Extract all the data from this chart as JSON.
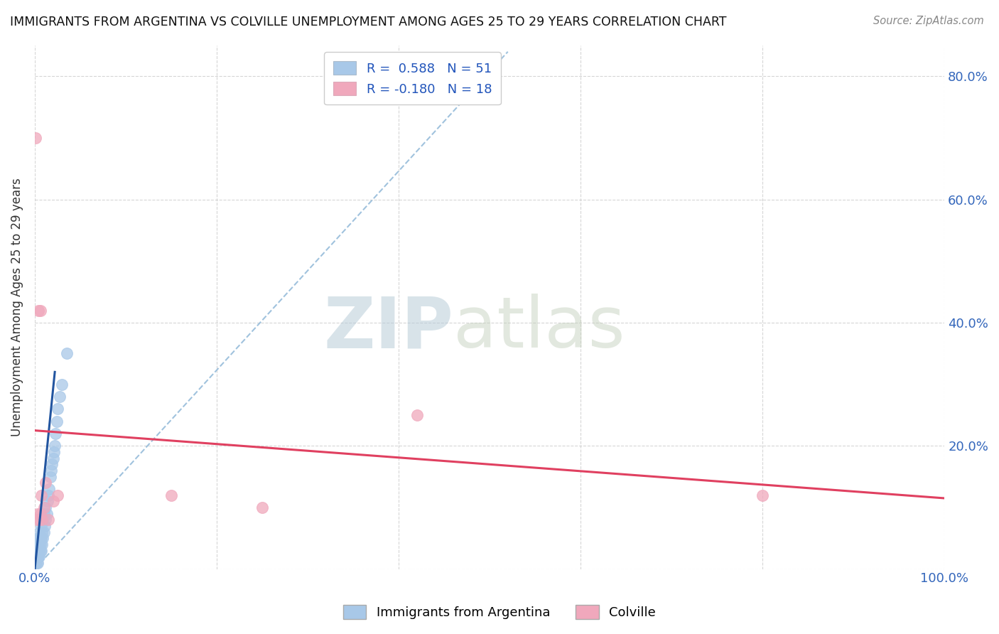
{
  "title": "IMMIGRANTS FROM ARGENTINA VS COLVILLE UNEMPLOYMENT AMONG AGES 25 TO 29 YEARS CORRELATION CHART",
  "source": "Source: ZipAtlas.com",
  "ylabel": "Unemployment Among Ages 25 to 29 years",
  "xlim": [
    0.0,
    1.0
  ],
  "ylim": [
    0.0,
    0.85
  ],
  "xticks": [
    0.0,
    0.2,
    0.4,
    0.6,
    0.8,
    1.0
  ],
  "xticklabels": [
    "0.0%",
    "",
    "",
    "",
    "",
    "100.0%"
  ],
  "yticks": [
    0.0,
    0.2,
    0.4,
    0.6,
    0.8
  ],
  "yticklabels_right": [
    "",
    "20.0%",
    "40.0%",
    "60.0%",
    "80.0%"
  ],
  "color_blue": "#a8c8e8",
  "color_pink": "#f0a8bc",
  "line_blue": "#2255a0",
  "line_pink": "#e04060",
  "line_dash": "#90b8d8",
  "blue_scatter_x": [
    0.001,
    0.001,
    0.001,
    0.001,
    0.002,
    0.002,
    0.002,
    0.002,
    0.002,
    0.003,
    0.003,
    0.003,
    0.003,
    0.004,
    0.004,
    0.004,
    0.005,
    0.005,
    0.005,
    0.005,
    0.006,
    0.006,
    0.006,
    0.007,
    0.007,
    0.007,
    0.008,
    0.008,
    0.009,
    0.009,
    0.01,
    0.01,
    0.011,
    0.012,
    0.012,
    0.013,
    0.014,
    0.015,
    0.016,
    0.017,
    0.018,
    0.019,
    0.02,
    0.021,
    0.022,
    0.023,
    0.024,
    0.025,
    0.027,
    0.03,
    0.035
  ],
  "blue_scatter_y": [
    0.01,
    0.01,
    0.02,
    0.03,
    0.01,
    0.02,
    0.02,
    0.03,
    0.04,
    0.01,
    0.02,
    0.03,
    0.04,
    0.02,
    0.03,
    0.05,
    0.02,
    0.03,
    0.04,
    0.06,
    0.03,
    0.04,
    0.05,
    0.03,
    0.05,
    0.07,
    0.04,
    0.06,
    0.05,
    0.08,
    0.06,
    0.09,
    0.07,
    0.08,
    0.1,
    0.09,
    0.11,
    0.12,
    0.13,
    0.15,
    0.16,
    0.17,
    0.18,
    0.19,
    0.2,
    0.22,
    0.24,
    0.26,
    0.28,
    0.3,
    0.35
  ],
  "pink_scatter_x": [
    0.001,
    0.002,
    0.003,
    0.004,
    0.005,
    0.006,
    0.006,
    0.007,
    0.008,
    0.01,
    0.012,
    0.015,
    0.02,
    0.025,
    0.15,
    0.25,
    0.42,
    0.8
  ],
  "pink_scatter_y": [
    0.7,
    0.08,
    0.09,
    0.42,
    0.08,
    0.42,
    0.09,
    0.12,
    0.08,
    0.1,
    0.14,
    0.08,
    0.11,
    0.12,
    0.12,
    0.1,
    0.25,
    0.12
  ],
  "blue_line_x": [
    0.0,
    0.022
  ],
  "blue_line_y": [
    0.0,
    0.32
  ],
  "dash_line_x": [
    0.0,
    0.52
  ],
  "dash_line_y": [
    0.0,
    0.84
  ],
  "pink_line_x": [
    0.0,
    1.0
  ],
  "pink_line_y": [
    0.225,
    0.115
  ]
}
